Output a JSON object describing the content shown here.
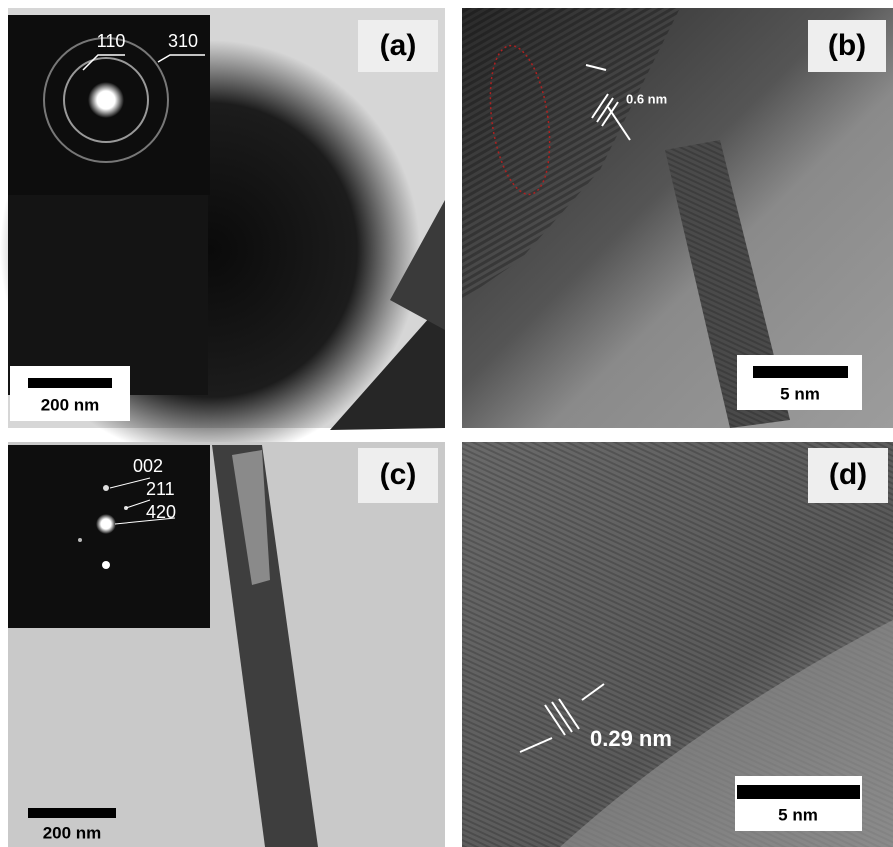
{
  "panels": [
    {
      "label": "(a)",
      "inset_labels": [
        "110",
        "310"
      ],
      "scale_bar": "200 nm"
    },
    {
      "label": "(b)",
      "annotation": "0.6 nm",
      "scale_bar": "5 nm"
    },
    {
      "label": "(c)",
      "inset_labels": [
        "002",
        "211",
        "420"
      ],
      "scale_bar": "200 nm"
    },
    {
      "label": "(d)",
      "annotation": "0.29 nm",
      "scale_bar": "5 nm"
    }
  ]
}
